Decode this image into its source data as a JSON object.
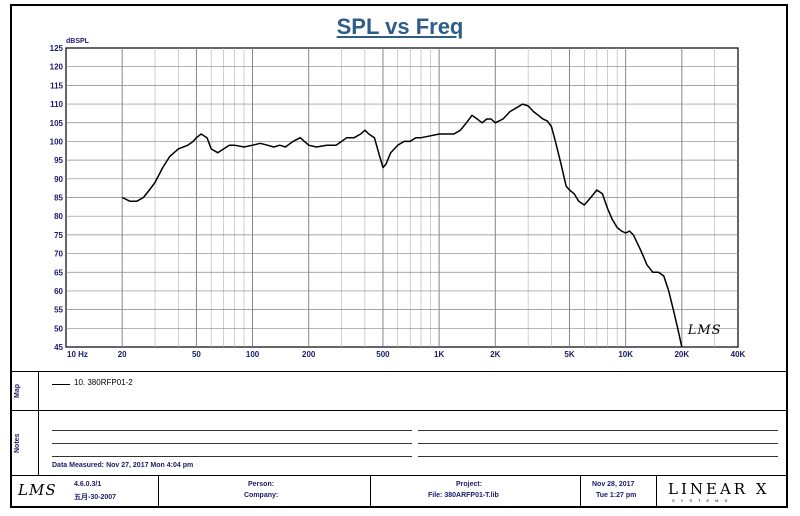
{
  "chart_data": {
    "type": "line",
    "title": "SPL vs Freq",
    "ylabel": "dBSPL",
    "xscale": "log",
    "xlim": [
      10,
      40000
    ],
    "ylim": [
      45,
      125
    ],
    "yticks": [
      45,
      50,
      55,
      60,
      65,
      70,
      75,
      80,
      85,
      90,
      95,
      100,
      105,
      110,
      115,
      120,
      125
    ],
    "xticks": [
      {
        "value": 10,
        "label": "10 Hz"
      },
      {
        "value": 20,
        "label": "20"
      },
      {
        "value": 50,
        "label": "50"
      },
      {
        "value": 100,
        "label": "100"
      },
      {
        "value": 200,
        "label": "200"
      },
      {
        "value": 500,
        "label": "500"
      },
      {
        "value": 1000,
        "label": "1K"
      },
      {
        "value": 2000,
        "label": "2K"
      },
      {
        "value": 5000,
        "label": "5K"
      },
      {
        "value": 10000,
        "label": "10K"
      },
      {
        "value": 20000,
        "label": "20K"
      },
      {
        "value": 40000,
        "label": "40K"
      }
    ],
    "grid": true,
    "annotation": "LMS",
    "series": [
      {
        "name": "10. 380RFP01-2",
        "color": "#000000",
        "x": [
          20,
          22,
          24,
          26,
          28,
          30,
          33,
          36,
          40,
          45,
          48,
          50,
          53,
          57,
          60,
          65,
          70,
          75,
          80,
          90,
          100,
          110,
          120,
          130,
          140,
          150,
          165,
          180,
          200,
          220,
          250,
          280,
          300,
          320,
          350,
          380,
          400,
          420,
          450,
          480,
          500,
          520,
          550,
          600,
          650,
          700,
          750,
          800,
          900,
          1000,
          1100,
          1200,
          1300,
          1400,
          1500,
          1600,
          1700,
          1800,
          1900,
          2000,
          2200,
          2400,
          2600,
          2800,
          3000,
          3200,
          3400,
          3600,
          3800,
          4000,
          4200,
          4500,
          4800,
          5000,
          5300,
          5600,
          6000,
          6500,
          7000,
          7500,
          8000,
          8500,
          9000,
          9500,
          10000,
          10500,
          11000,
          11500,
          12000,
          12500,
          13000,
          14000,
          15000,
          16000,
          17000,
          18000,
          19000,
          20000
        ],
        "y": [
          85,
          84,
          84,
          85,
          87,
          89,
          93,
          96,
          98,
          99,
          100,
          101,
          102,
          101,
          98,
          97,
          98,
          99,
          99,
          98.5,
          99,
          99.5,
          99,
          98.5,
          99,
          98.5,
          100,
          101,
          99,
          98.5,
          99,
          99,
          100,
          101,
          101,
          102,
          103,
          102,
          101,
          96,
          93,
          94,
          97,
          99,
          100,
          100,
          101,
          101,
          101.5,
          102,
          102,
          102,
          103,
          105,
          107,
          106,
          105,
          106,
          106,
          105,
          106,
          108,
          109,
          110,
          109.5,
          108,
          107,
          106,
          105.5,
          104,
          100,
          94,
          88,
          87,
          86,
          84,
          83,
          85,
          87,
          86,
          82,
          79,
          77,
          76,
          75.5,
          76,
          75,
          73,
          71,
          69,
          67,
          65,
          65,
          64,
          60,
          55,
          50,
          45
        ]
      }
    ]
  },
  "map_panel": {
    "label": "Map",
    "legend_entry": "10. 380RFP01-2"
  },
  "notes_panel": {
    "label": "Notes",
    "data_measured": "Data Measured: Nov 27, 2017  Mon  4:04 pm"
  },
  "footer": {
    "lms_logo": "LMS",
    "version": "4.6.0.3/1",
    "version_date": "五月-30-2007",
    "person_label": "Person:",
    "company_label": "Company:",
    "project_label": "Project:",
    "file_label": "File: 380ARFP01-T.lib",
    "date": "Nov 28, 2017",
    "time": "Tue  1:27 pm",
    "brand": "LINEAR X",
    "brand_sub": "SYSTEMS"
  }
}
